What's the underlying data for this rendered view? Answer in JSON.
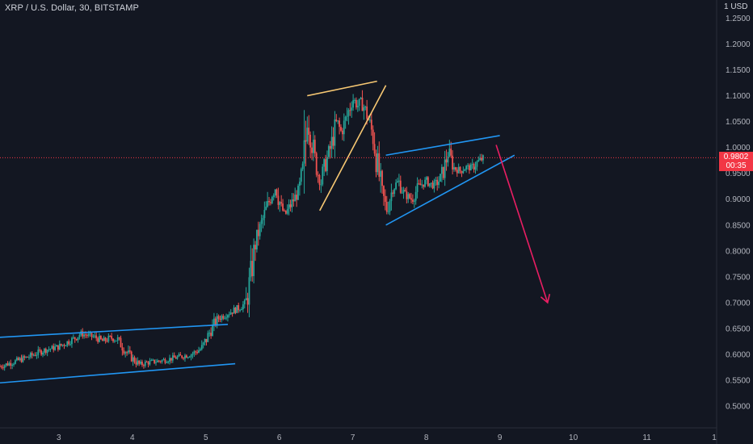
{
  "header": {
    "title": "XRP / U.S. Dollar, 30, BITSTAMP"
  },
  "price_axis": {
    "currency": "1 USD"
  },
  "last_price": {
    "value": "0.9802",
    "countdown": "00:35"
  },
  "colors": {
    "background": "#131722",
    "up": "#26a69a",
    "down": "#ef5350",
    "channel_lines": "#2196f3",
    "wedge_lines": "#f7c873",
    "arrow": "#e91e63",
    "last_price_line": "#f23645"
  },
  "chart_data": {
    "type": "candlestick",
    "title": "XRP / U.S. Dollar, 30, BITSTAMP",
    "xlabel": "",
    "ylabel": "",
    "x_ticks": [
      "3",
      "4",
      "5",
      "6",
      "7",
      "8",
      "9",
      "10",
      "11",
      "1"
    ],
    "y_ticks": [
      "1.2500",
      "1.2000",
      "1.1500",
      "1.1000",
      "1.0500",
      "1.0000",
      "0.9500",
      "0.9000",
      "0.8500",
      "0.8000",
      "0.7500",
      "0.7000",
      "0.6500",
      "0.6000",
      "0.5500",
      "0.5000"
    ],
    "xlim": [
      2.2,
      11.95
    ],
    "ylim": [
      0.458,
      1.285
    ],
    "grid": false,
    "last_price": 0.9802,
    "price_path": [
      [
        2.2,
        0.577
      ],
      [
        2.4,
        0.586
      ],
      [
        2.6,
        0.596
      ],
      [
        2.8,
        0.608
      ],
      [
        3.0,
        0.615
      ],
      [
        3.2,
        0.63
      ],
      [
        3.3,
        0.64
      ],
      [
        3.5,
        0.633
      ],
      [
        3.6,
        0.625
      ],
      [
        3.7,
        0.632
      ],
      [
        3.8,
        0.628
      ],
      [
        3.9,
        0.608
      ],
      [
        4.0,
        0.592
      ],
      [
        4.1,
        0.58
      ],
      [
        4.2,
        0.584
      ],
      [
        4.4,
        0.588
      ],
      [
        4.6,
        0.594
      ],
      [
        4.8,
        0.6
      ],
      [
        4.95,
        0.612
      ],
      [
        5.05,
        0.642
      ],
      [
        5.15,
        0.668
      ],
      [
        5.25,
        0.676
      ],
      [
        5.35,
        0.683
      ],
      [
        5.45,
        0.69
      ],
      [
        5.55,
        0.7
      ],
      [
        5.62,
        0.76
      ],
      [
        5.68,
        0.82
      ],
      [
        5.74,
        0.845
      ],
      [
        5.82,
        0.88
      ],
      [
        5.9,
        0.91
      ],
      [
        5.96,
        0.925
      ],
      [
        6.02,
        0.885
      ],
      [
        6.08,
        0.87
      ],
      [
        6.18,
        0.895
      ],
      [
        6.28,
        0.92
      ],
      [
        6.34,
        0.97
      ],
      [
        6.38,
        1.06
      ],
      [
        6.42,
        1.03
      ],
      [
        6.48,
        0.98
      ],
      [
        6.56,
        0.93
      ],
      [
        6.62,
        0.965
      ],
      [
        6.7,
        1.0
      ],
      [
        6.78,
        1.05
      ],
      [
        6.84,
        1.03
      ],
      [
        6.92,
        1.06
      ],
      [
        7.0,
        1.095
      ],
      [
        7.06,
        1.08
      ],
      [
        7.12,
        1.09
      ],
      [
        7.2,
        1.06
      ],
      [
        7.28,
        1.02
      ],
      [
        7.34,
        0.96
      ],
      [
        7.4,
        0.91
      ],
      [
        7.46,
        0.88
      ],
      [
        7.54,
        0.92
      ],
      [
        7.62,
        0.935
      ],
      [
        7.7,
        0.91
      ],
      [
        7.8,
        0.9
      ],
      [
        7.9,
        0.925
      ],
      [
        8.0,
        0.935
      ],
      [
        8.1,
        0.925
      ],
      [
        8.2,
        0.94
      ],
      [
        8.3,
        0.99
      ],
      [
        8.38,
        0.96
      ],
      [
        8.46,
        0.955
      ],
      [
        8.54,
        0.962
      ],
      [
        8.62,
        0.96
      ],
      [
        8.7,
        0.972
      ],
      [
        8.78,
        0.98
      ]
    ],
    "drawings": [
      {
        "kind": "channel-upper",
        "color": "#2196f3",
        "from": [
          2.2,
          0.633
        ],
        "to": [
          5.3,
          0.658
        ]
      },
      {
        "kind": "channel-lower",
        "color": "#2196f3",
        "from": [
          2.2,
          0.545
        ],
        "to": [
          5.4,
          0.582
        ]
      },
      {
        "kind": "wedge-top",
        "color": "#f7c873",
        "from": [
          6.38,
          1.1
        ],
        "to": [
          7.33,
          1.128
        ]
      },
      {
        "kind": "wedge-side",
        "color": "#f7c873",
        "from": [
          6.55,
          0.878
        ],
        "to": [
          7.45,
          1.12
        ]
      },
      {
        "kind": "channel-upper",
        "color": "#2196f3",
        "from": [
          7.45,
          0.985
        ],
        "to": [
          9.0,
          1.023
        ]
      },
      {
        "kind": "channel-lower",
        "color": "#2196f3",
        "from": [
          7.45,
          0.85
        ],
        "to": [
          9.2,
          0.985
        ]
      },
      {
        "kind": "arrow",
        "color": "#e91e63",
        "from": [
          8.95,
          1.005
        ],
        "to": [
          9.65,
          0.7
        ]
      }
    ]
  }
}
